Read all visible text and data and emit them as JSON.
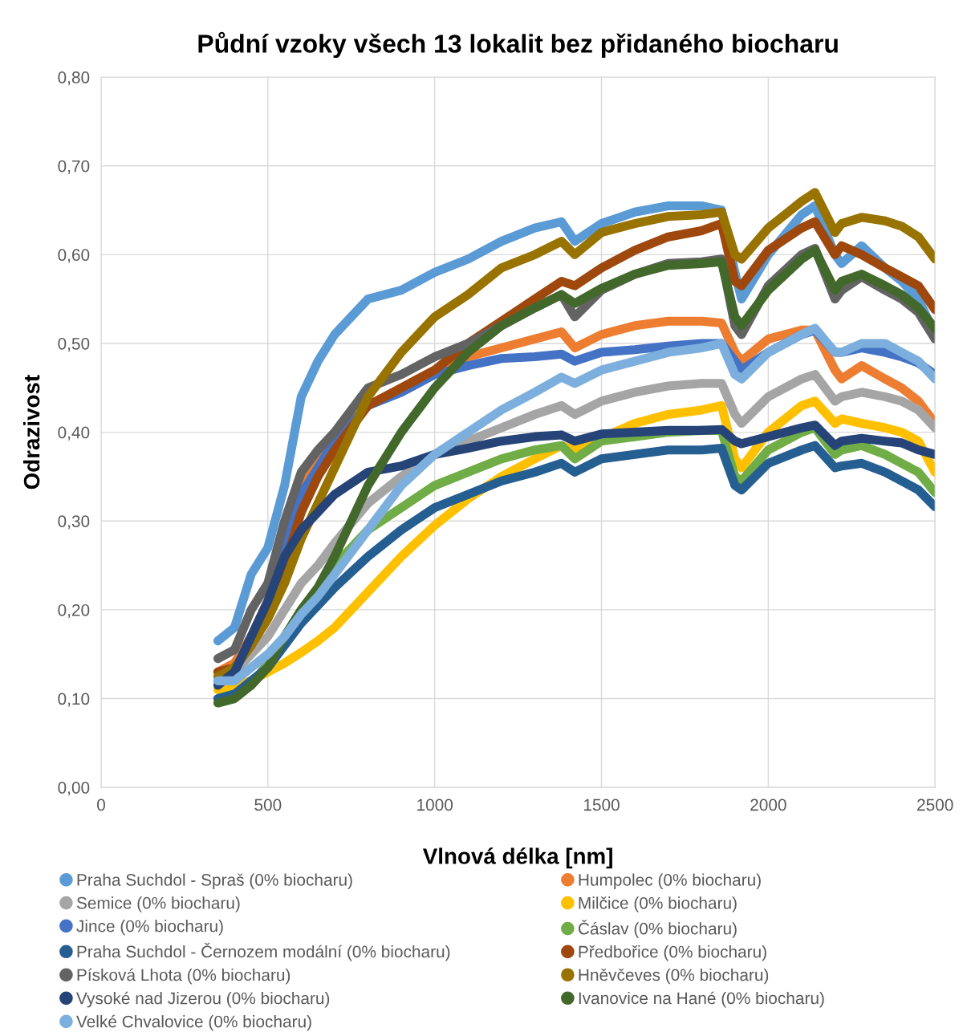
{
  "chart_data": {
    "type": "line",
    "title": "Půdní vzoky všech 13 lokalit bez přidaného biocharu",
    "xlabel": "Vlnová délka [nm]",
    "ylabel": "Odrazivost",
    "x": [
      350,
      400,
      450,
      500,
      550,
      600,
      650,
      700,
      800,
      900,
      1000,
      1100,
      1200,
      1300,
      1380,
      1420,
      1500,
      1600,
      1700,
      1800,
      1860,
      1900,
      1920,
      2000,
      2100,
      2140,
      2200,
      2220,
      2280,
      2350,
      2400,
      2450,
      2500
    ],
    "series": [
      {
        "name": "Praha Suchdol - Spraš (0% biocharu)",
        "color": "#5b9bd5",
        "values": [
          0.165,
          0.18,
          0.24,
          0.27,
          0.34,
          0.44,
          0.48,
          0.51,
          0.55,
          0.56,
          0.58,
          0.595,
          0.615,
          0.63,
          0.637,
          0.615,
          0.635,
          0.648,
          0.655,
          0.655,
          0.65,
          0.58,
          0.55,
          0.6,
          0.645,
          0.655,
          0.6,
          0.59,
          0.61,
          0.585,
          0.57,
          0.55,
          0.51
        ]
      },
      {
        "name": "Humpolec (0% biocharu)",
        "color": "#ed7d31",
        "values": [
          0.13,
          0.14,
          0.17,
          0.21,
          0.28,
          0.34,
          0.37,
          0.39,
          0.43,
          0.45,
          0.47,
          0.485,
          0.495,
          0.505,
          0.513,
          0.495,
          0.51,
          0.52,
          0.525,
          0.525,
          0.523,
          0.49,
          0.48,
          0.505,
          0.515,
          0.515,
          0.47,
          0.46,
          0.475,
          0.46,
          0.45,
          0.435,
          0.41
        ]
      },
      {
        "name": "Semice (0% biocharu)",
        "color": "#a5a5a5",
        "values": [
          0.12,
          0.13,
          0.15,
          0.17,
          0.2,
          0.23,
          0.25,
          0.275,
          0.32,
          0.35,
          0.375,
          0.39,
          0.405,
          0.42,
          0.43,
          0.42,
          0.435,
          0.445,
          0.452,
          0.455,
          0.455,
          0.42,
          0.41,
          0.44,
          0.46,
          0.465,
          0.435,
          0.44,
          0.445,
          0.44,
          0.435,
          0.425,
          0.405
        ]
      },
      {
        "name": "Milčice (0% biocharu)",
        "color": "#ffc000",
        "x": [
          350,
          400,
          450,
          500,
          550,
          600,
          650,
          700,
          800,
          900,
          1000,
          1100,
          1200,
          1300,
          1380,
          1420,
          1600,
          1700,
          1800,
          1860,
          1900,
          1920,
          2000,
          2100,
          2140,
          2200,
          2220,
          2280,
          2350,
          2400,
          2450,
          2500
        ],
        "values": [
          0.11,
          0.115,
          0.12,
          0.13,
          0.14,
          0.152,
          0.165,
          0.18,
          0.22,
          0.26,
          0.295,
          0.325,
          0.35,
          0.37,
          0.385,
          0.38,
          0.41,
          0.42,
          0.425,
          0.43,
          0.37,
          0.36,
          0.4,
          0.43,
          0.435,
          0.41,
          0.415,
          0.41,
          0.405,
          0.4,
          0.39,
          0.355
        ]
      },
      {
        "name": "Jince (0% biocharu)",
        "color": "#4472c4",
        "values": [
          0.12,
          0.13,
          0.17,
          0.2,
          0.27,
          0.33,
          0.36,
          0.39,
          0.43,
          0.445,
          0.465,
          0.475,
          0.483,
          0.485,
          0.488,
          0.48,
          0.49,
          0.493,
          0.497,
          0.5,
          0.5,
          0.48,
          0.47,
          0.49,
          0.51,
          0.515,
          0.49,
          0.49,
          0.495,
          0.49,
          0.485,
          0.478,
          0.465
        ]
      },
      {
        "name": "Čáslav (0% biocharu)",
        "color": "#70ad47",
        "values": [
          0.1,
          0.105,
          0.115,
          0.14,
          0.17,
          0.2,
          0.225,
          0.25,
          0.29,
          0.315,
          0.34,
          0.355,
          0.37,
          0.38,
          0.385,
          0.37,
          0.39,
          0.395,
          0.4,
          0.402,
          0.402,
          0.35,
          0.345,
          0.38,
          0.4,
          0.405,
          0.375,
          0.38,
          0.385,
          0.375,
          0.365,
          0.355,
          0.332
        ]
      },
      {
        "name": "Praha Suchdol - Černozem modální (0% biocharu)",
        "color": "#255e91",
        "values": [
          0.1,
          0.105,
          0.12,
          0.135,
          0.16,
          0.185,
          0.205,
          0.225,
          0.26,
          0.29,
          0.315,
          0.33,
          0.345,
          0.355,
          0.365,
          0.355,
          0.37,
          0.375,
          0.38,
          0.38,
          0.382,
          0.34,
          0.335,
          0.365,
          0.38,
          0.385,
          0.36,
          0.362,
          0.365,
          0.355,
          0.345,
          0.335,
          0.316
        ]
      },
      {
        "name": "Předbořice (0% biocharu)",
        "color": "#9e480e",
        "values": [
          0.13,
          0.135,
          0.16,
          0.2,
          0.25,
          0.31,
          0.35,
          0.38,
          0.43,
          0.45,
          0.47,
          0.5,
          0.525,
          0.55,
          0.57,
          0.565,
          0.585,
          0.605,
          0.62,
          0.627,
          0.635,
          0.57,
          0.565,
          0.605,
          0.63,
          0.637,
          0.6,
          0.61,
          0.6,
          0.585,
          0.575,
          0.565,
          0.538
        ]
      },
      {
        "name": "Písková Lhota (0% biocharu)",
        "color": "#636363",
        "values": [
          0.145,
          0.155,
          0.2,
          0.23,
          0.3,
          0.355,
          0.38,
          0.4,
          0.45,
          0.465,
          0.485,
          0.5,
          0.52,
          0.54,
          0.555,
          0.53,
          0.56,
          0.578,
          0.59,
          0.592,
          0.595,
          0.52,
          0.51,
          0.565,
          0.6,
          0.607,
          0.55,
          0.56,
          0.575,
          0.56,
          0.55,
          0.535,
          0.505
        ]
      },
      {
        "name": "Hněvčeves (0% biocharu)",
        "color": "#997300",
        "values": [
          0.125,
          0.135,
          0.16,
          0.19,
          0.23,
          0.28,
          0.32,
          0.36,
          0.44,
          0.49,
          0.53,
          0.555,
          0.585,
          0.6,
          0.615,
          0.6,
          0.625,
          0.635,
          0.643,
          0.645,
          0.648,
          0.6,
          0.595,
          0.63,
          0.66,
          0.67,
          0.625,
          0.635,
          0.642,
          0.638,
          0.632,
          0.62,
          0.595
        ]
      },
      {
        "name": "Vysoké nad Jizerou (0% biocharu)",
        "color": "#264478",
        "values": [
          0.115,
          0.13,
          0.17,
          0.21,
          0.26,
          0.29,
          0.31,
          0.33,
          0.355,
          0.362,
          0.375,
          0.382,
          0.39,
          0.395,
          0.397,
          0.39,
          0.398,
          0.4,
          0.402,
          0.402,
          0.403,
          0.39,
          0.387,
          0.395,
          0.405,
          0.408,
          0.385,
          0.39,
          0.393,
          0.39,
          0.388,
          0.38,
          0.375
        ]
      },
      {
        "name": "Ivanovice na Hané (0% biocharu)",
        "color": "#43682b",
        "values": [
          0.095,
          0.1,
          0.115,
          0.135,
          0.17,
          0.2,
          0.225,
          0.26,
          0.34,
          0.4,
          0.45,
          0.49,
          0.52,
          0.54,
          0.555,
          0.545,
          0.562,
          0.578,
          0.588,
          0.59,
          0.592,
          0.53,
          0.52,
          0.56,
          0.595,
          0.605,
          0.56,
          0.57,
          0.578,
          0.565,
          0.555,
          0.54,
          0.517
        ]
      },
      {
        "name": "Velké Chvalovice (0% biocharu)",
        "color": "#7cafdd",
        "values": [
          0.12,
          0.12,
          0.135,
          0.15,
          0.17,
          0.195,
          0.215,
          0.24,
          0.29,
          0.34,
          0.375,
          0.4,
          0.425,
          0.445,
          0.462,
          0.455,
          0.47,
          0.48,
          0.49,
          0.495,
          0.5,
          0.465,
          0.46,
          0.49,
          0.51,
          0.517,
          0.49,
          0.49,
          0.5,
          0.5,
          0.49,
          0.48,
          0.46
        ]
      }
    ],
    "xlim": [
      0,
      2500
    ],
    "xticks": [
      0,
      500,
      1000,
      1500,
      2000,
      2500
    ],
    "ylim": [
      0,
      0.8
    ],
    "yticks": [
      {
        "value": 0,
        "label": "0,00"
      },
      {
        "value": 0.1,
        "label": "0,10"
      },
      {
        "value": 0.2,
        "label": "0,20"
      },
      {
        "value": 0.3,
        "label": "0,30"
      },
      {
        "value": 0.4,
        "label": "0,40"
      },
      {
        "value": 0.5,
        "label": "0,50"
      },
      {
        "value": 0.6,
        "label": "0,60"
      },
      {
        "value": 0.7,
        "label": "0,70"
      },
      {
        "value": 0.8,
        "label": "0,80"
      }
    ],
    "grid": true,
    "legend": "bottom",
    "marker": "none",
    "line_style": "solid"
  }
}
